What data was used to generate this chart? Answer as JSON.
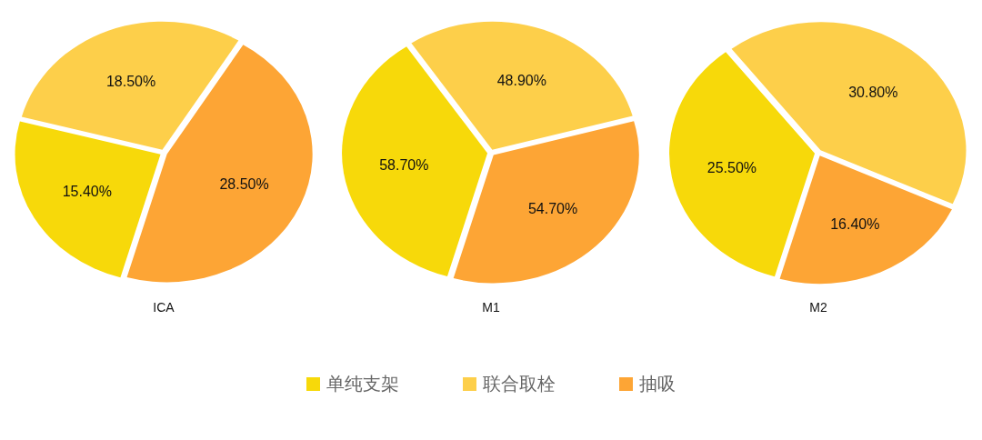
{
  "chart_data": [
    {
      "type": "pie",
      "title": "ICA",
      "values": [
        15.4,
        18.5,
        28.5
      ],
      "colors": [
        "#f7d90a",
        "#fdcf4a",
        "#fda535"
      ],
      "value_labels": [
        "15.40%",
        "18.50%",
        "28.50%"
      ]
    },
    {
      "type": "pie",
      "title": "M1",
      "categories": [
        "单纯支架",
        "联合取栓",
        "抽吸"
      ],
      "values": [
        58.7,
        48.9,
        54.7
      ],
      "colors": [
        "#f7d90a",
        "#fdcf4a",
        "#fda535"
      ],
      "value_labels": [
        "58.70%",
        "48.90%",
        "54.70%"
      ],
      "legend": "bottom"
    },
    {
      "type": "pie",
      "title": "M2",
      "values": [
        25.5,
        30.8,
        16.4
      ],
      "colors": [
        "#f7d90a",
        "#fdcf4a",
        "#fda535"
      ],
      "value_labels": [
        "25.50%",
        "30.80%",
        "16.40%"
      ]
    }
  ]
}
